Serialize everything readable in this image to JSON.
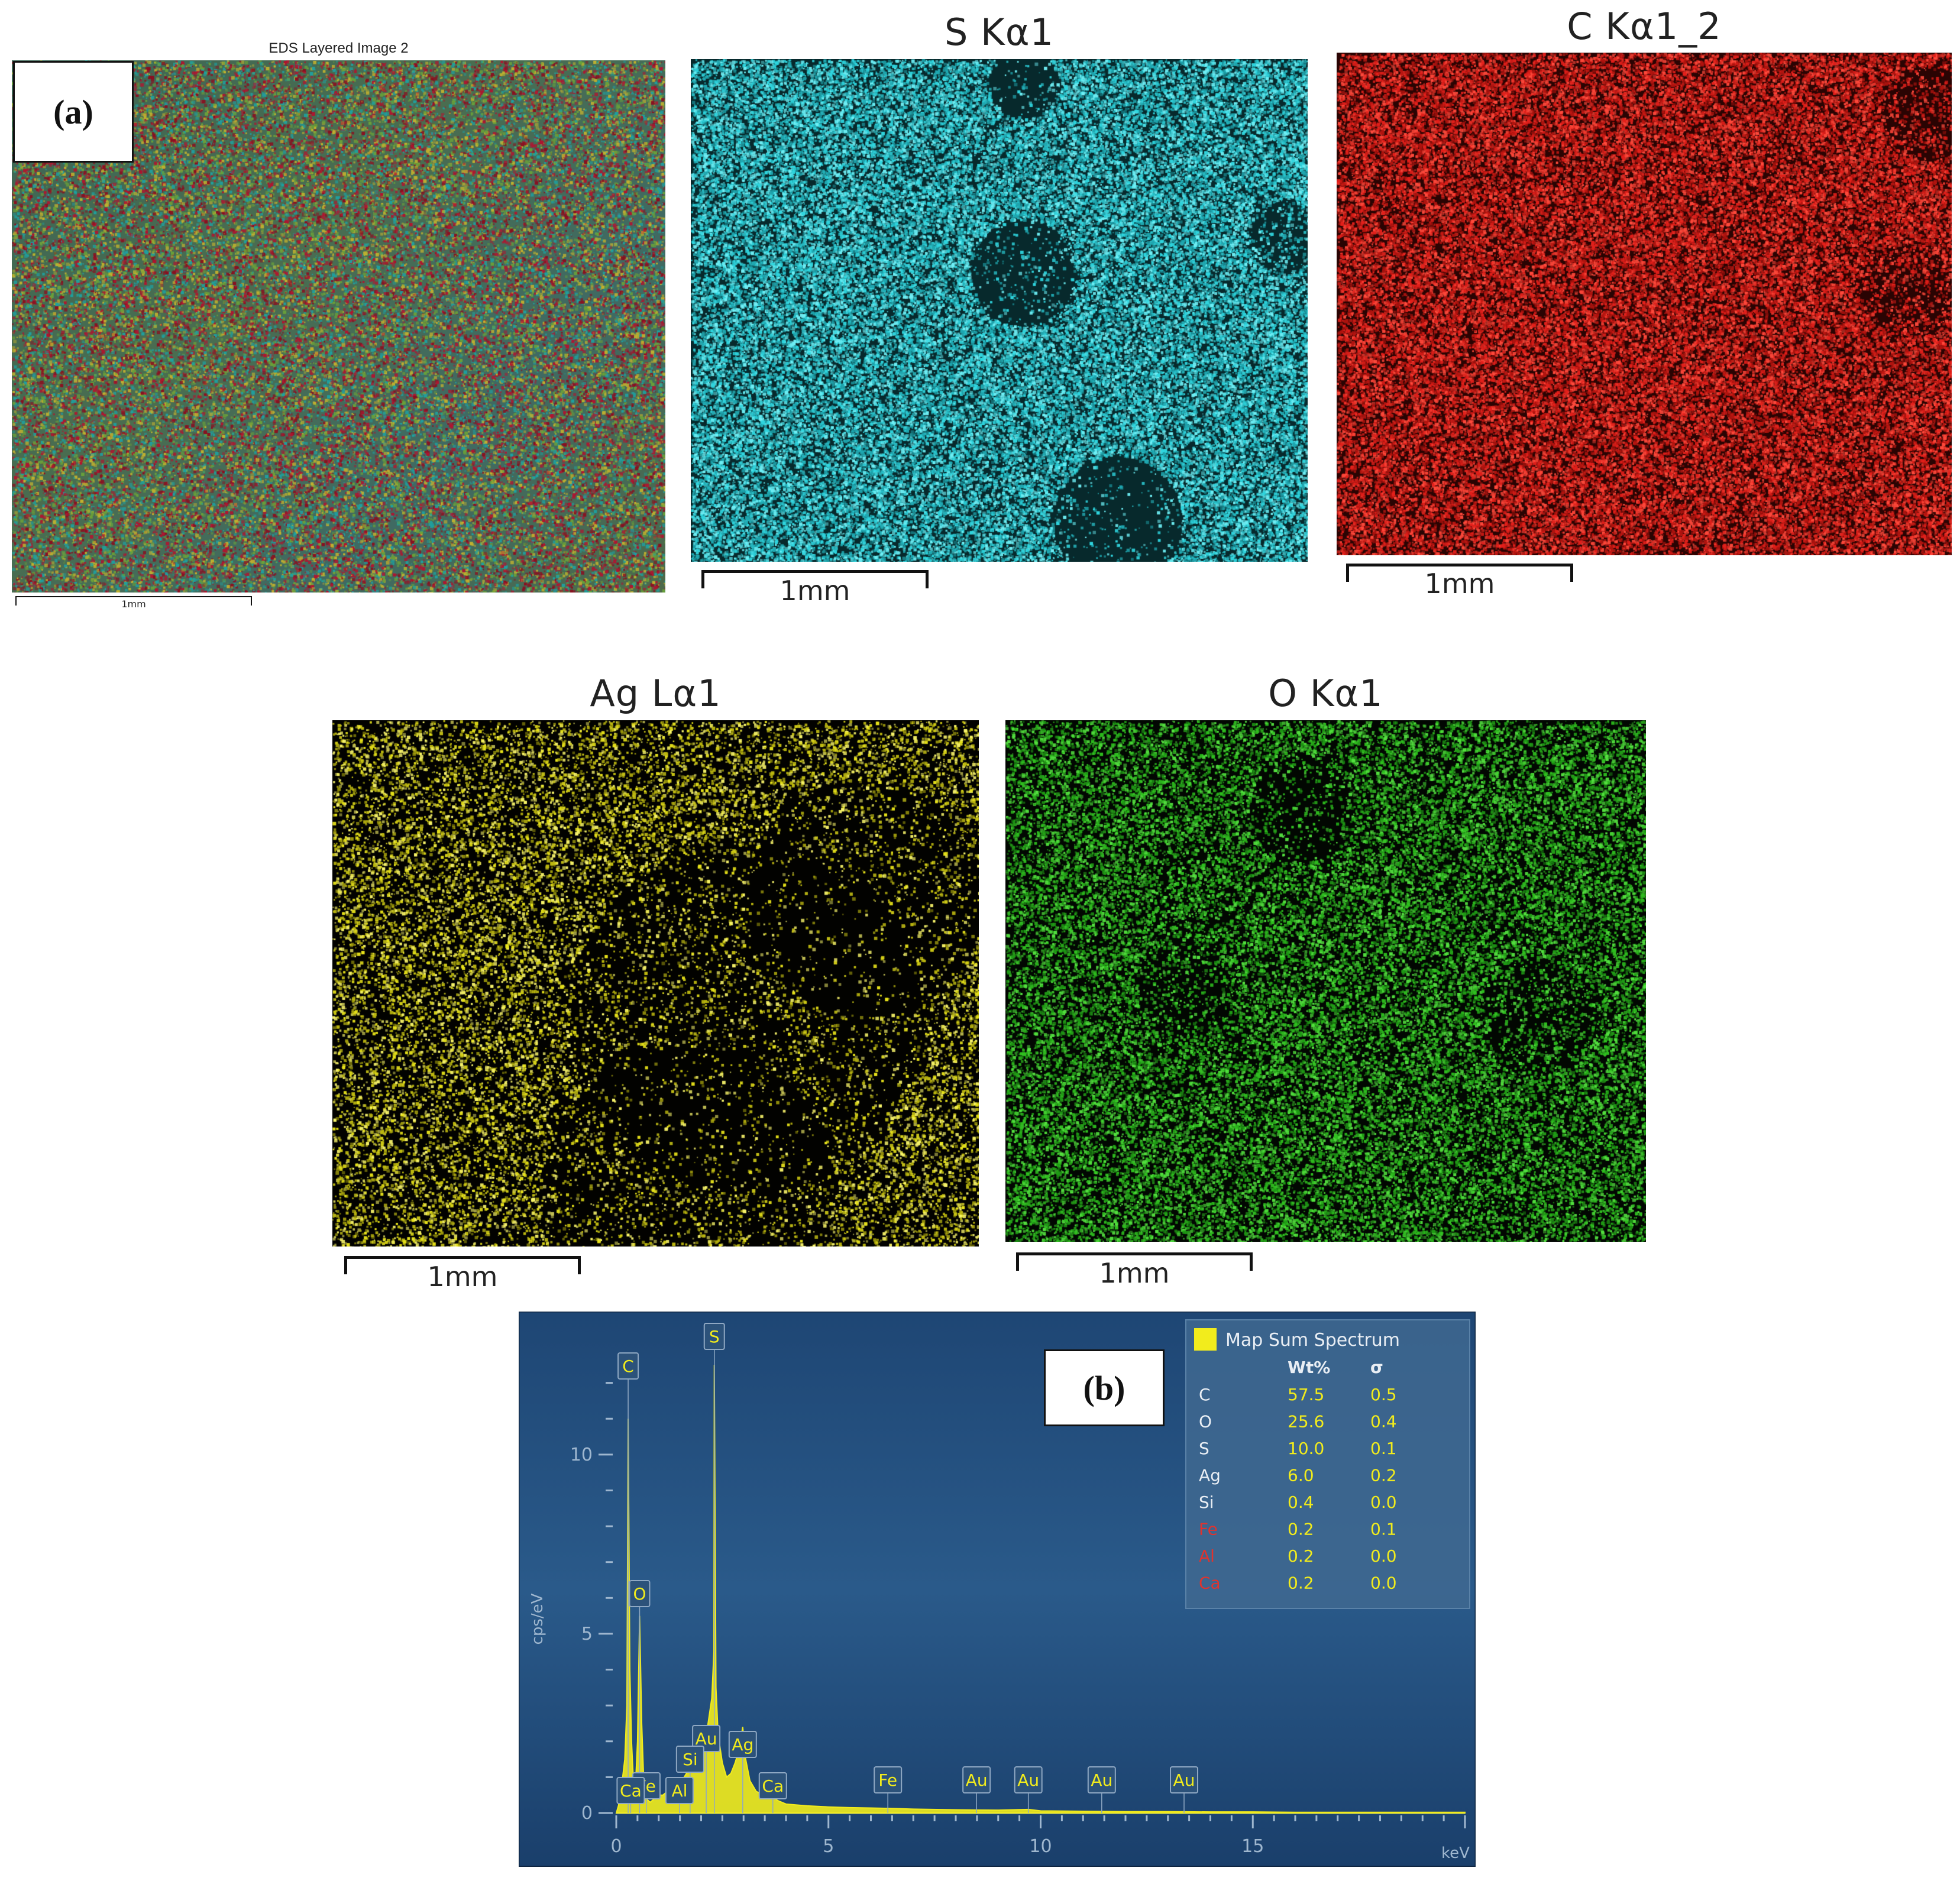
{
  "panel_a": {
    "label": "(a)",
    "layered": {
      "title": "EDS Layered Image 2",
      "scale": "1mm"
    },
    "maps": [
      {
        "key": "s",
        "title": "S Kα1",
        "scale": "1mm",
        "color": "#2fd6df",
        "bg": "#07292c"
      },
      {
        "key": "c",
        "title": "C Kα1_2",
        "scale": "1mm",
        "color": "#e3201b",
        "bg": "#2a0403"
      },
      {
        "key": "ag",
        "title": "Ag Lα1",
        "scale": "1mm",
        "color": "#e7e21a",
        "bg": "#020200"
      },
      {
        "key": "o",
        "title": "O Kα1",
        "scale": "1mm",
        "color": "#2fbf1f",
        "bg": "#020702"
      }
    ]
  },
  "panel_b": {
    "label": "(b)"
  },
  "colors": {
    "spectrum_bg": "#1f4a78",
    "spectrum_line": "#f2ec1c",
    "legend_bg": "#3f6890",
    "trace_red": "#e0332e",
    "peak_label": "#f2ec1c"
  },
  "chart_data": {
    "type": "line",
    "title": "",
    "xlabel": "keV",
    "ylabel": "cps/eV",
    "xlim": [
      0,
      20
    ],
    "ylim": [
      0,
      13
    ],
    "x_ticks": [
      "0",
      "5",
      "10",
      "15"
    ],
    "y_ticks": [
      "0",
      "5",
      "10"
    ],
    "series": [
      {
        "name": "Map Sum Spectrum",
        "x": [
          0.0,
          0.05,
          0.1,
          0.15,
          0.2,
          0.25,
          0.28,
          0.32,
          0.36,
          0.4,
          0.45,
          0.5,
          0.55,
          0.6,
          0.65,
          0.7,
          0.8,
          0.9,
          1.0,
          1.1,
          1.2,
          1.3,
          1.4,
          1.5,
          1.6,
          1.7,
          1.74,
          1.8,
          1.9,
          2.0,
          2.1,
          2.2,
          2.25,
          2.3,
          2.31,
          2.35,
          2.4,
          2.5,
          2.6,
          2.7,
          2.8,
          2.9,
          2.98,
          3.05,
          3.15,
          3.3,
          3.5,
          3.69,
          3.8,
          4.0,
          4.5,
          5.0,
          5.5,
          6.0,
          6.4,
          7.0,
          8.0,
          9.0,
          9.71,
          10.0,
          11.0,
          12.0,
          13.0,
          14.0,
          15.0,
          16.0,
          17.0,
          18.0,
          19.0,
          20.0
        ],
        "y": [
          0.0,
          0.2,
          0.5,
          1.0,
          1.5,
          3.0,
          11.0,
          4.0,
          2.0,
          1.0,
          0.7,
          2.0,
          5.5,
          2.5,
          0.8,
          0.4,
          0.3,
          0.4,
          0.5,
          0.5,
          0.6,
          0.7,
          0.8,
          0.9,
          1.0,
          1.2,
          1.5,
          1.3,
          1.2,
          1.6,
          2.0,
          2.8,
          3.2,
          4.5,
          12.5,
          3.5,
          2.2,
          1.4,
          1.0,
          1.1,
          1.4,
          1.8,
          2.4,
          1.5,
          0.9,
          0.6,
          0.5,
          0.45,
          0.35,
          0.25,
          0.2,
          0.17,
          0.15,
          0.14,
          0.13,
          0.11,
          0.09,
          0.08,
          0.1,
          0.06,
          0.05,
          0.04,
          0.04,
          0.03,
          0.03,
          0.02,
          0.02,
          0.02,
          0.02,
          0.02
        ]
      }
    ],
    "peak_labels": [
      {
        "label": "C",
        "x": 0.28,
        "y": 11.0
      },
      {
        "label": "S",
        "x": 2.31,
        "y": 12.5
      },
      {
        "label": "O",
        "x": 0.55,
        "y": 5.5
      },
      {
        "label": "Au",
        "x": 2.12,
        "y": 2.8
      },
      {
        "label": "Ag",
        "x": 2.98,
        "y": 2.4
      },
      {
        "label": "Si",
        "x": 1.74,
        "y": 1.5
      },
      {
        "label": "Fe",
        "x": 0.71,
        "y": 0.6
      },
      {
        "label": "Al",
        "x": 1.49,
        "y": 0.9
      },
      {
        "label": "Ca",
        "x": 0.34,
        "y": 0.1
      },
      {
        "label": "Ca",
        "x": 3.69,
        "y": 0.45
      },
      {
        "label": "Fe",
        "x": 6.4,
        "y": 0.13
      },
      {
        "label": "Au",
        "x": 8.49,
        "y": 0.09
      },
      {
        "label": "Au",
        "x": 9.71,
        "y": 0.1
      },
      {
        "label": "Au",
        "x": 11.44,
        "y": 0.05
      },
      {
        "label": "Au",
        "x": 13.38,
        "y": 0.04
      }
    ],
    "legend": {
      "title": "Map Sum Spectrum",
      "headers": [
        "",
        "Wt%",
        "σ"
      ],
      "rows": [
        {
          "element": "C",
          "wt": "57.5",
          "sigma": "0.5",
          "highlight": false
        },
        {
          "element": "O",
          "wt": "25.6",
          "sigma": "0.4",
          "highlight": false
        },
        {
          "element": "S",
          "wt": "10.0",
          "sigma": "0.1",
          "highlight": false
        },
        {
          "element": "Ag",
          "wt": "6.0",
          "sigma": "0.2",
          "highlight": false
        },
        {
          "element": "Si",
          "wt": "0.4",
          "sigma": "0.0",
          "highlight": false
        },
        {
          "element": "Fe",
          "wt": "0.2",
          "sigma": "0.1",
          "highlight": true
        },
        {
          "element": "Al",
          "wt": "0.2",
          "sigma": "0.0",
          "highlight": true
        },
        {
          "element": "Ca",
          "wt": "0.2",
          "sigma": "0.0",
          "highlight": true
        }
      ]
    }
  }
}
